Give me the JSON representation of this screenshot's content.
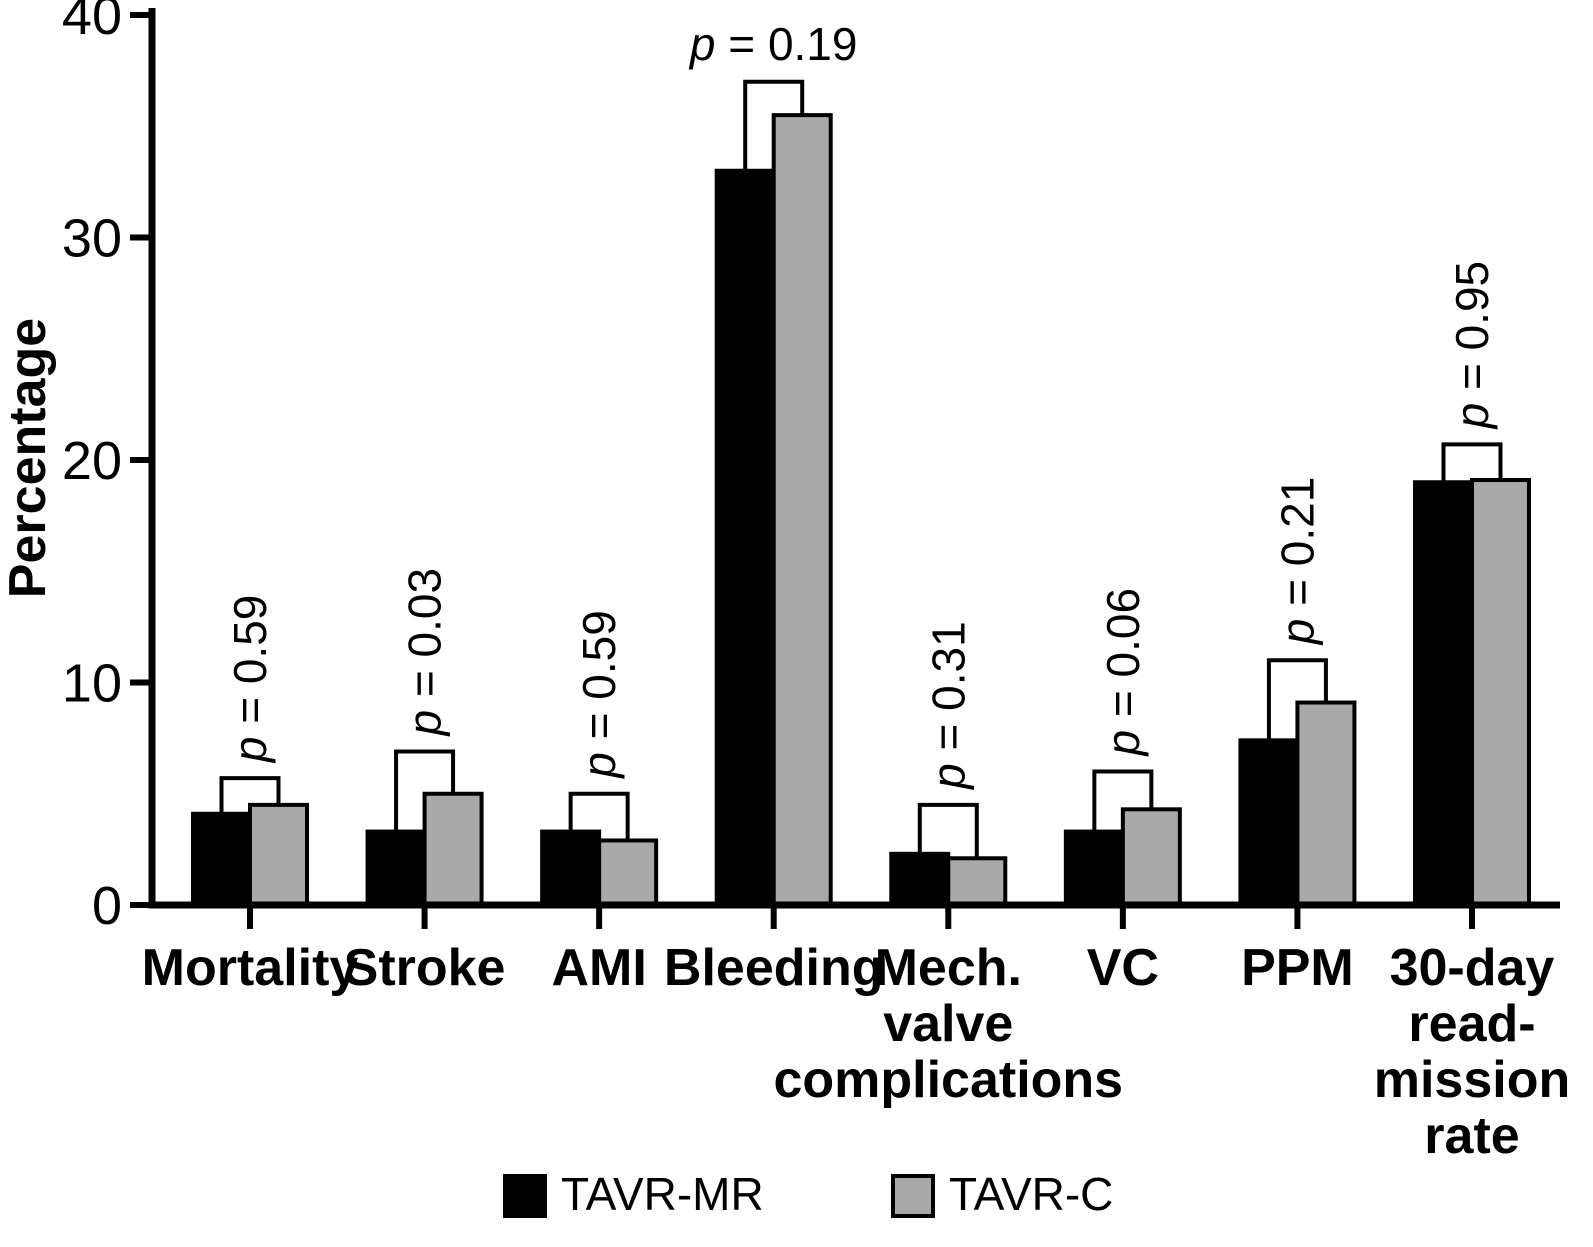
{
  "chart_data": {
    "type": "bar",
    "title": "",
    "ylabel": "Percentage",
    "xlabel": "",
    "ylim": [
      0,
      40
    ],
    "yticks": [
      0,
      10,
      20,
      30,
      40
    ],
    "grid": false,
    "legend_position": "bottom",
    "categories": [
      "Mortality",
      "Stroke",
      "AMI",
      "Bleeding",
      "Mech. valve complications",
      "VC",
      "PPM",
      "30-day read-mission rate"
    ],
    "category_lines": [
      [
        "Mortality"
      ],
      [
        "Stroke"
      ],
      [
        "AMI"
      ],
      [
        "Bleeding"
      ],
      [
        "Mech.",
        "valve",
        "complications"
      ],
      [
        "VC"
      ],
      [
        "PPM"
      ],
      [
        "30-day",
        "read-",
        "mission",
        "rate"
      ]
    ],
    "series": [
      {
        "name": "TAVR-MR",
        "color": "#000000",
        "values": [
          4.1,
          3.3,
          3.3,
          33.0,
          2.3,
          3.3,
          7.4,
          19.0
        ]
      },
      {
        "name": "TAVR-C",
        "color": "#a9a9a9",
        "values": [
          4.5,
          5.0,
          2.9,
          35.5,
          2.1,
          4.3,
          9.1,
          19.1
        ]
      }
    ],
    "p_label_prefix": "p = ",
    "p_values": [
      "0.59",
      "0.03",
      "0.59",
      "0.19",
      "0.31",
      "0.06",
      "0.21",
      "0.95"
    ],
    "p_orientation": [
      "vertical",
      "vertical",
      "vertical",
      "horizontal",
      "vertical",
      "vertical",
      "vertical",
      "vertical"
    ],
    "bracket_tops": [
      5.7,
      6.9,
      5.0,
      37.0,
      4.5,
      6.0,
      11.0,
      20.7
    ],
    "legend": [
      {
        "label": "TAVR-MR",
        "color": "#000000"
      },
      {
        "label": "TAVR-C",
        "color": "#a9a9a9"
      }
    ]
  }
}
